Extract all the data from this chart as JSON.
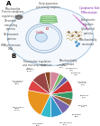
{
  "pie_slices": [
    {
      "label": "Protein\nprocessing\n(7%)",
      "value": 7,
      "color": "#d4879c"
    },
    {
      "label": "Cytoskeleton\n(4%)",
      "value": 4,
      "color": "#7dbb6d"
    },
    {
      "label": "Chromatin\n(4%)",
      "value": 4,
      "color": "#6666aa"
    },
    {
      "label": "Uncharact.\nproteins\n(9%)",
      "value": 9,
      "color": "#cc3333"
    },
    {
      "label": "Signaling\n(6%)",
      "value": 6,
      "color": "#339966"
    },
    {
      "label": "Structural\n(5%)",
      "value": 5,
      "color": "#996633"
    },
    {
      "label": "Ribosomal\n(8%)",
      "value": 8,
      "color": "#7766aa"
    },
    {
      "label": "Mitochondrial\n(9%)",
      "value": 9,
      "color": "#3399cc"
    },
    {
      "label": "Proteasomal\n(8%)",
      "value": 8,
      "color": "#33bbcc"
    },
    {
      "label": "Transcription\nfactor\n(22%)",
      "value": 22,
      "color": "#e8931d"
    },
    {
      "label": "Cell cycle or\napoptosis\n(8%)",
      "value": 8,
      "color": "#dd4444"
    },
    {
      "label": "Stress\nresponse\n(11%)",
      "value": 11,
      "color": "#994444"
    },
    {
      "label": "Kinase\n(4%)",
      "value": 4,
      "color": "#884422"
    }
  ],
  "cell_outer_fc": "#f5f8fc",
  "cell_outer_ec": "#aac8e0",
  "nucleus_fc": "#e8f0f8",
  "nucleus_ec": "#88aacc",
  "nucleolus_fc": "#d0e4f4",
  "nucleolus_ec": "#6699cc",
  "nuclear_pore_color": "#88aacc",
  "golgi_fc": "#b8e0b0",
  "golgi_ec": "#55aa55",
  "mito_fc": "#e8d0d0",
  "mito_ec": "#cc8888",
  "er_fc": "#f0e8c8",
  "er_ec": "#ccaa66",
  "background": "#ffffff"
}
